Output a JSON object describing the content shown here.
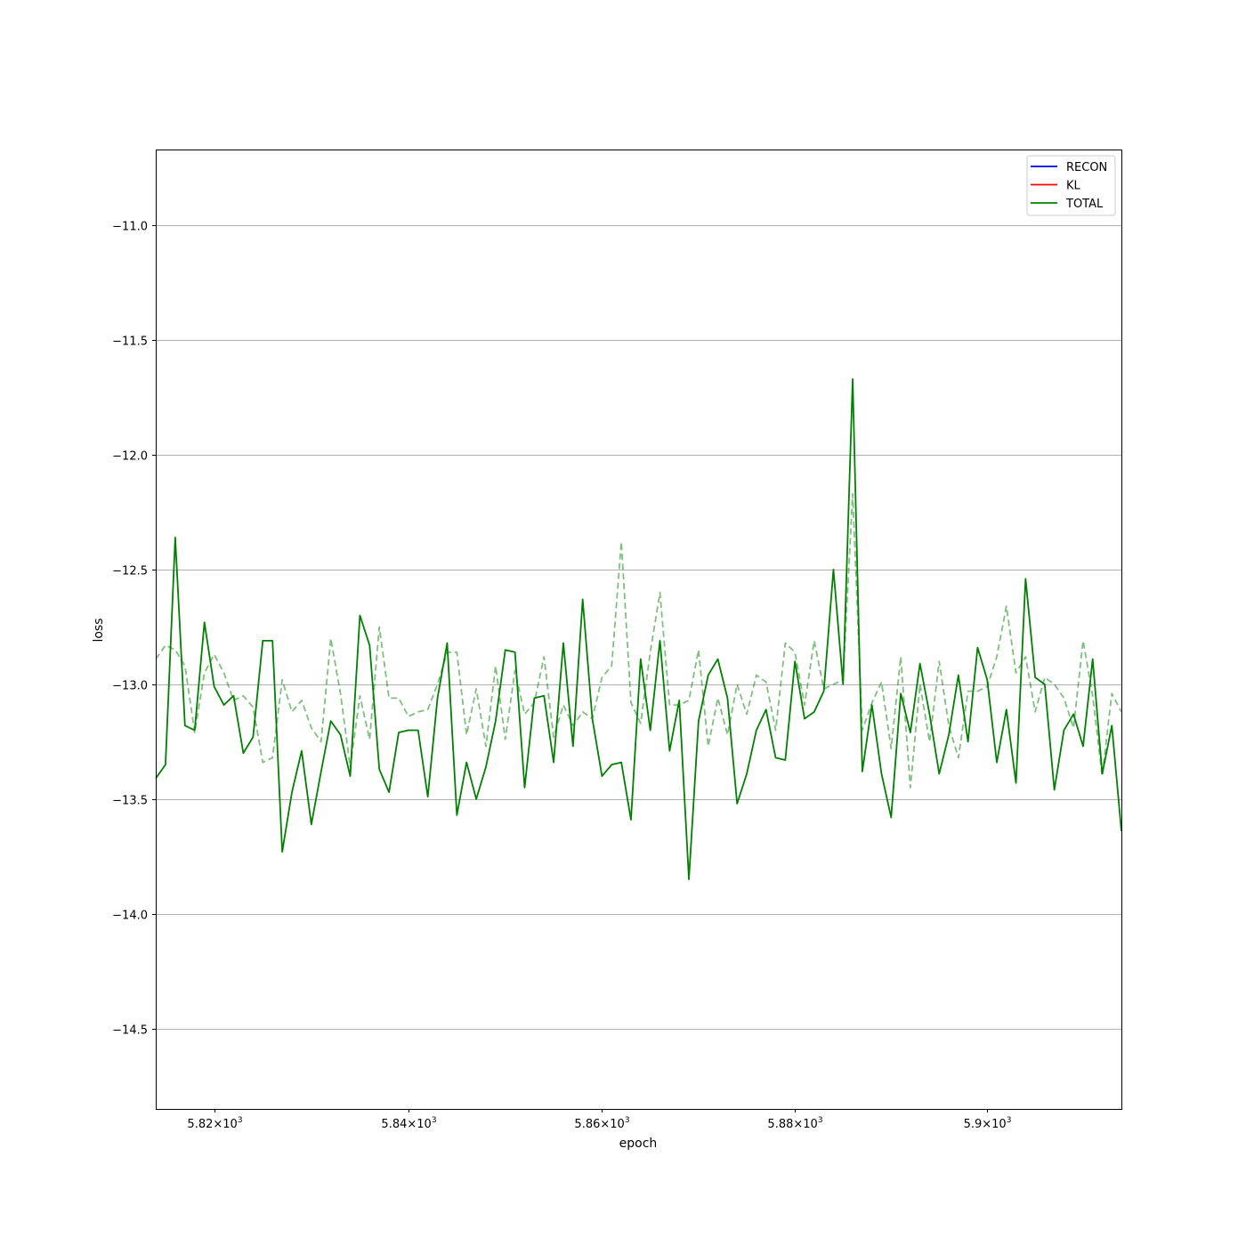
{
  "chart_data": {
    "type": "line",
    "title": "",
    "xlabel": "epoch",
    "ylabel": "loss",
    "xscale": "log",
    "xlim": [
      5814,
      5914
    ],
    "ylim": [
      -14.85,
      -10.67
    ],
    "grid": {
      "x": false,
      "y": true
    },
    "x_ticks": [
      {
        "value": 5820,
        "mantissa": "5.82",
        "base": "10",
        "exp": "3"
      },
      {
        "value": 5840,
        "mantissa": "5.84",
        "base": "10",
        "exp": "3"
      },
      {
        "value": 5860,
        "mantissa": "5.86",
        "base": "10",
        "exp": "3"
      },
      {
        "value": 5880,
        "mantissa": "5.88",
        "base": "10",
        "exp": "3"
      },
      {
        "value": 5900,
        "mantissa": "5.9",
        "base": "10",
        "exp": "3"
      }
    ],
    "y_ticks": [
      {
        "value": -11.0,
        "label": "−11.0"
      },
      {
        "value": -11.5,
        "label": "−11.5"
      },
      {
        "value": -12.0,
        "label": "−12.0"
      },
      {
        "value": -12.5,
        "label": "−12.5"
      },
      {
        "value": -13.0,
        "label": "−13.0"
      },
      {
        "value": -13.5,
        "label": "−13.5"
      },
      {
        "value": -14.0,
        "label": "−14.0"
      },
      {
        "value": -14.5,
        "label": "−14.5"
      }
    ],
    "legend": {
      "position": "top-right",
      "entries": [
        {
          "label": "RECON",
          "color": "#0000ff"
        },
        {
          "label": "KL",
          "color": "#ff0000"
        },
        {
          "label": "TOTAL",
          "color": "#008000"
        }
      ]
    },
    "x_start": 5814,
    "x_step": 1,
    "series": [
      {
        "name": "TOTAL",
        "color": "#008000",
        "style": "solid",
        "values": [
          -13.41,
          -13.35,
          -12.36,
          -13.18,
          -13.2,
          -12.73,
          -13.01,
          -13.09,
          -13.05,
          -13.3,
          -13.23,
          -12.81,
          -12.81,
          -13.73,
          -13.47,
          -13.29,
          -13.61,
          -13.38,
          -13.16,
          -13.22,
          -13.4,
          -12.7,
          -12.83,
          -13.37,
          -13.47,
          -13.21,
          -13.2,
          -13.2,
          -13.49,
          -13.06,
          -12.82,
          -13.57,
          -13.34,
          -13.5,
          -13.36,
          -13.16,
          -12.85,
          -12.86,
          -13.45,
          -13.06,
          -13.05,
          -13.34,
          -12.82,
          -13.27,
          -12.63,
          -13.15,
          -13.4,
          -13.35,
          -13.34,
          -13.59,
          -12.89,
          -13.2,
          -12.81,
          -13.29,
          -13.07,
          -13.85,
          -13.16,
          -12.96,
          -12.89,
          -13.06,
          -13.52,
          -13.39,
          -13.2,
          -13.11,
          -13.32,
          -13.33,
          -12.9,
          -13.15,
          -13.12,
          -13.03,
          -12.5,
          -13.0,
          -11.67,
          -13.38,
          -13.09,
          -13.39,
          -13.58,
          -13.04,
          -13.21,
          -12.91,
          -13.13,
          -13.39,
          -13.22,
          -12.96,
          -13.25,
          -12.84,
          -12.98,
          -13.34,
          -13.11,
          -13.43,
          -12.54,
          -12.97,
          -13.0,
          -13.46,
          -13.2,
          -13.13,
          -13.27,
          -12.89,
          -13.39,
          -13.18,
          -13.64
        ]
      },
      {
        "name": "",
        "color": "#008000",
        "style": "dashed",
        "values": [
          -12.89,
          -12.83,
          -12.85,
          -12.92,
          -13.21,
          -12.95,
          -12.87,
          -12.95,
          -13.07,
          -13.05,
          -13.1,
          -13.34,
          -13.32,
          -12.98,
          -13.12,
          -13.07,
          -13.19,
          -13.25,
          -12.8,
          -13.04,
          -13.36,
          -13.05,
          -13.24,
          -12.75,
          -13.06,
          -13.06,
          -13.14,
          -13.12,
          -13.11,
          -13.0,
          -12.86,
          -12.86,
          -13.22,
          -13.02,
          -13.27,
          -12.92,
          -13.24,
          -12.94,
          -13.13,
          -13.08,
          -12.88,
          -13.23,
          -13.09,
          -13.18,
          -13.12,
          -13.15,
          -12.97,
          -12.92,
          -12.38,
          -13.08,
          -13.17,
          -12.86,
          -12.6,
          -13.09,
          -13.09,
          -13.07,
          -12.85,
          -13.27,
          -13.06,
          -13.22,
          -13.0,
          -13.13,
          -12.96,
          -12.99,
          -13.2,
          -12.82,
          -12.86,
          -13.09,
          -12.81,
          -13.02,
          -13.0,
          -12.98,
          -12.17,
          -13.2,
          -13.08,
          -12.99,
          -13.28,
          -12.88,
          -13.45,
          -13.0,
          -13.25,
          -12.9,
          -13.18,
          -13.32,
          -13.03,
          -13.03,
          -13.01,
          -12.88,
          -12.66,
          -12.95,
          -12.88,
          -13.12,
          -12.97,
          -13.0,
          -13.06,
          -13.19,
          -12.81,
          -13.05,
          -13.4,
          -13.04,
          -13.12
        ]
      }
    ]
  }
}
